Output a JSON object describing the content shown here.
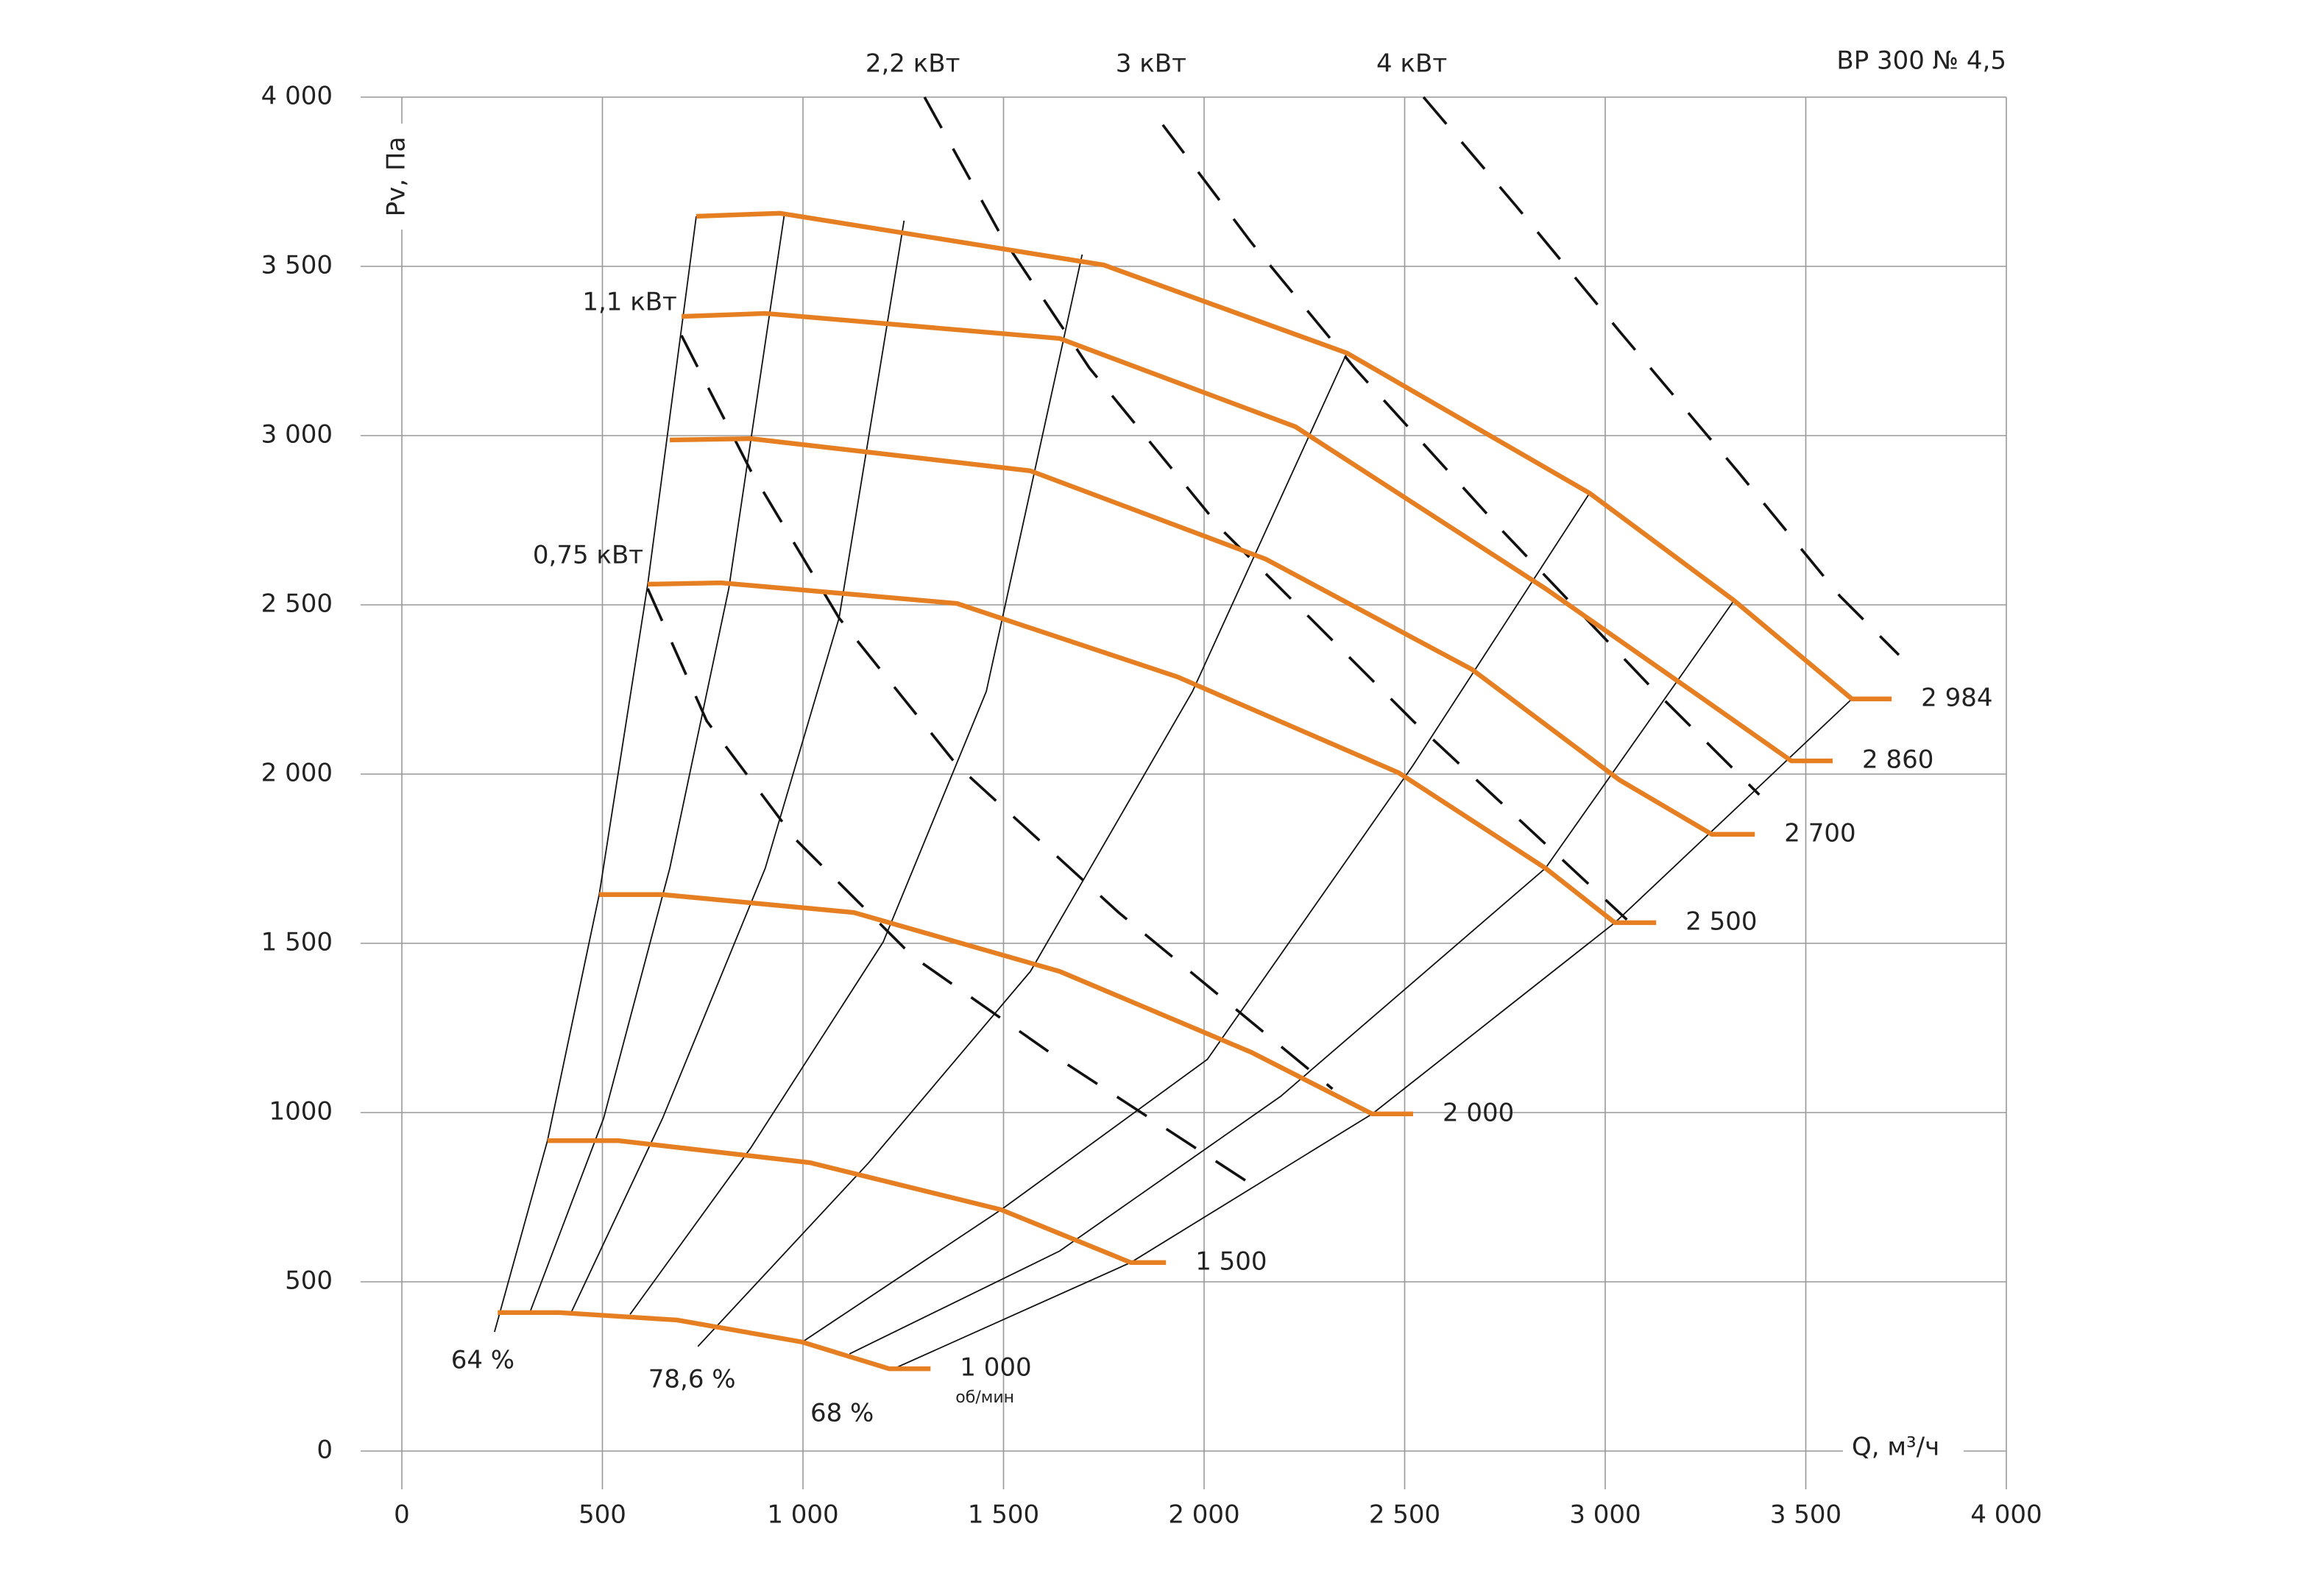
{
  "chart_data": {
    "type": "line",
    "title": "ВР 300 № 4,5",
    "y_label": "Pv, Па",
    "x_label": "Q, м³/ч",
    "speed_unit": "об/мин",
    "xlim": [
      0,
      4000
    ],
    "ylim": [
      0,
      4000
    ],
    "xticks": [
      0,
      500,
      {
        "value": 1000,
        "label": "1 000"
      },
      {
        "value": 1500,
        "label": "1 500"
      },
      {
        "value": 2000,
        "label": "2 000"
      },
      {
        "value": 2500,
        "label": "2 500"
      },
      {
        "value": 3000,
        "label": "3 000"
      },
      {
        "value": 3500,
        "label": "3 500"
      },
      {
        "value": 4000,
        "label": "4 000"
      }
    ],
    "yticks": [
      0,
      500,
      {
        "value": 1000,
        "label": "1000"
      },
      {
        "value": 1500,
        "label": "1 500"
      },
      {
        "value": 2000,
        "label": "2 000"
      },
      {
        "value": 2500,
        "label": "2 500"
      },
      {
        "value": 3000,
        "label": "3 000"
      },
      {
        "value": 3500,
        "label": "3 500"
      },
      {
        "value": 4000,
        "label": "4 000"
      }
    ],
    "grid": true,
    "series": [
      {
        "name": "2 984",
        "color": "#e67e22",
        "x": [
          734,
          943,
          1750,
          2356,
          2961,
          3321,
          3615,
          3714
        ],
        "values": [
          3648,
          3657,
          3504,
          3244,
          2830,
          2513,
          2222,
          2222
        ]
      },
      {
        "name": "2 860",
        "color": "#e67e22",
        "x": [
          697,
          906,
          1640,
          2228,
          2851,
          3218,
          3464,
          3567
        ],
        "values": [
          3352,
          3361,
          3287,
          3026,
          2548,
          2244,
          2039,
          2039
        ]
      },
      {
        "name": "2 700",
        "color": "#e67e22",
        "x": [
          668,
          870,
          1567,
          2154,
          2668,
          3035,
          3266,
          3373
        ],
        "values": [
          2987,
          2991,
          2896,
          2635,
          2309,
          1983,
          1822,
          1822
        ]
      },
      {
        "name": "2 500",
        "color": "#e67e22",
        "x": [
          613,
          796,
          1384,
          1934,
          2485,
          2851,
          3024,
          3127
        ],
        "values": [
          2561,
          2565,
          2504,
          2287,
          2004,
          1722,
          1561,
          1561
        ]
      },
      {
        "name": "2 000",
        "color": "#e67e22",
        "x": [
          492,
          650,
          1127,
          1640,
          2118,
          2419,
          2521
        ],
        "values": [
          1644,
          1644,
          1591,
          1417,
          1178,
          996,
          996
        ]
      },
      {
        "name": "1 500",
        "color": "#e67e22",
        "x": [
          363,
          540,
          1017,
          1494,
          1817,
          1905
        ],
        "values": [
          917,
          917,
          852,
          713,
          557,
          557
        ]
      },
      {
        "name": "1 000",
        "color": "#e67e22",
        "x": [
          239,
          393,
          686,
          998,
          1215,
          1318
        ],
        "values": [
          409,
          409,
          387,
          322,
          243,
          243
        ]
      }
    ],
    "efficiency_lines": [
      {
        "name": "64 %",
        "color": "#111111",
        "x": [
          231,
          363,
          492,
          613,
          734
        ],
        "values": [
          352,
          917,
          1644,
          2561,
          3648
        ]
      },
      {
        "color": "#111111",
        "x": [
          319,
          503,
          668,
          815,
          954
        ],
        "values": [
          409,
          983,
          1722,
          2548,
          3657
        ]
      },
      {
        "color": "#111111",
        "x": [
          422,
          650,
          906,
          1090,
          1252
        ],
        "values": [
          409,
          983,
          1722,
          2461,
          3635
        ]
      },
      {
        "color": "#111111",
        "x": [
          569,
          870,
          1200,
          1457,
          1696
        ],
        "values": [
          404,
          896,
          1504,
          2244,
          3535
        ]
      },
      {
        "name": "78,6 %",
        "color": "#111111",
        "x": [
          738,
          1164,
          1567,
          1971,
          2356
        ],
        "values": [
          309,
          852,
          1417,
          2244,
          3244
        ]
      },
      {
        "color": "#111111",
        "x": [
          998,
          1494,
          2008,
          2521,
          2961
        ],
        "values": [
          322,
          713,
          1157,
          2026,
          2830
        ]
      },
      {
        "color": "#111111",
        "x": [
          1116,
          1640,
          2191,
          2851,
          3321
        ],
        "values": [
          287,
          591,
          1048,
          1722,
          2513
        ]
      },
      {
        "name": "68 %",
        "color": "#111111",
        "x": [
          1226,
          1817,
          2419,
          3024,
          3615
        ],
        "values": [
          243,
          557,
          996,
          1561,
          2222
        ]
      }
    ],
    "power_lines": [
      {
        "name": "0,75 кВт",
        "color": "#111111",
        "x": [
          613,
          760,
          980,
          1274,
          1640,
          2136
        ],
        "values": [
          2548,
          2157,
          1809,
          1461,
          1157,
          774
        ]
      },
      {
        "name": "1,1 кВт",
        "color": "#111111",
        "x": [
          697,
          870,
          1090,
          1384,
          1787,
          2320
        ],
        "values": [
          3296,
          2896,
          2461,
          2026,
          1591,
          1070
        ]
      },
      {
        "name": "2,2 кВт",
        "color": "#111111",
        "x": [
          1303,
          1494,
          1714,
          2044,
          2521,
          3054
        ],
        "values": [
          4000,
          3591,
          3200,
          2722,
          2157,
          1570
        ]
      },
      {
        "name": "3 кВт",
        "color": "#111111",
        "x": [
          1897,
          2118,
          2375,
          2741,
          3108,
          3384
        ],
        "values": [
          3918,
          3570,
          3200,
          2722,
          2265,
          1939
        ]
      },
      {
        "name": "4 кВт",
        "color": "#111111",
        "x": [
          2547,
          2778,
          3035,
          3329,
          3585,
          3732
        ],
        "values": [
          4000,
          3678,
          3309,
          2896,
          2526,
          2352
        ]
      }
    ]
  }
}
